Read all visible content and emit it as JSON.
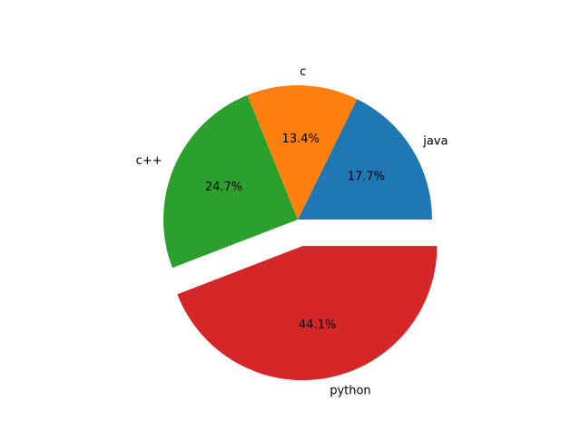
{
  "chart_data": {
    "type": "pie",
    "title": "",
    "slices": [
      {
        "label": "java",
        "value": 17.7,
        "pct_label": "17.7%",
        "color": "#1f77b4",
        "explode": 0.0
      },
      {
        "label": "c",
        "value": 13.4,
        "pct_label": "13.4%",
        "color": "#ff7f0e",
        "explode": 0.0
      },
      {
        "label": "c++",
        "value": 24.7,
        "pct_label": "24.7%",
        "color": "#2ca02c",
        "explode": 0.0
      },
      {
        "label": "python",
        "value": 44.1,
        "pct_label": "44.1%",
        "color": "#d62728",
        "explode": 0.2
      }
    ],
    "start_angle_deg": 0,
    "direction": "counterclockwise",
    "legend": "none"
  }
}
